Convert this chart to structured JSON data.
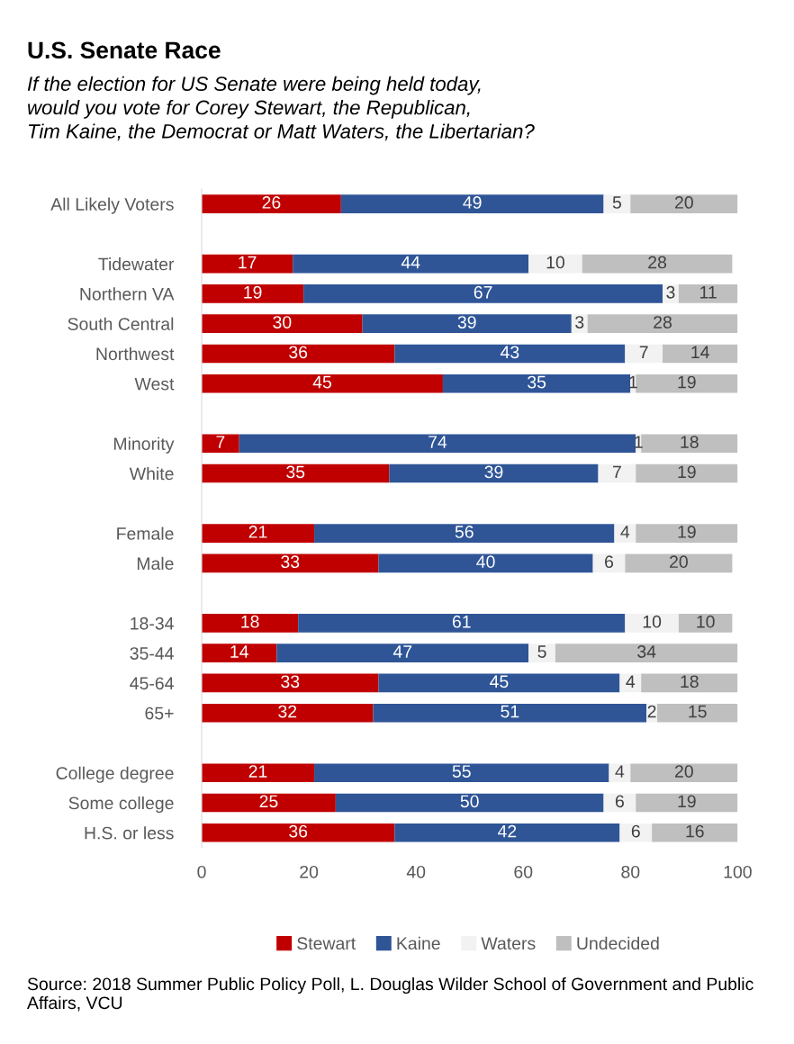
{
  "chart_data": {
    "type": "bar",
    "orientation": "horizontal",
    "stacked": true,
    "title": "U.S. Senate Race",
    "subtitle": "If the election for US Senate were being held today,\nwould you vote for Corey Stewart, the Republican,\nTim Kaine, the Democrat or Matt Waters, the Libertarian?",
    "categories": [
      "All Likely Voters",
      null,
      "Tidewater",
      "Northern VA",
      "South Central",
      "Northwest",
      "West",
      null,
      "Minority",
      "White",
      null,
      "Female",
      "Male",
      null,
      "18-34",
      "35-44",
      "45-64",
      "65+",
      null,
      "College degree",
      "Some college",
      "H.S. or less"
    ],
    "series": [
      {
        "name": "Stewart",
        "color": "#c00000",
        "values": [
          26,
          null,
          17,
          19,
          30,
          36,
          45,
          null,
          7,
          35,
          null,
          21,
          33,
          null,
          18,
          14,
          33,
          32,
          null,
          21,
          25,
          36
        ]
      },
      {
        "name": "Kaine",
        "color": "#2f5597",
        "values": [
          49,
          null,
          44,
          67,
          39,
          43,
          35,
          null,
          74,
          39,
          null,
          56,
          40,
          null,
          61,
          47,
          45,
          51,
          null,
          55,
          50,
          42
        ]
      },
      {
        "name": "Waters",
        "color": "#f2f2f2",
        "values": [
          5,
          null,
          10,
          3,
          3,
          7,
          1,
          null,
          1,
          7,
          null,
          4,
          6,
          null,
          10,
          5,
          4,
          2,
          null,
          4,
          6,
          6
        ]
      },
      {
        "name": "Undecided",
        "color": "#bfbfbf",
        "values": [
          20,
          null,
          28,
          11,
          28,
          14,
          19,
          null,
          18,
          19,
          null,
          19,
          20,
          null,
          10,
          34,
          18,
          15,
          null,
          20,
          19,
          16
        ]
      }
    ],
    "xlim": [
      0,
      100
    ],
    "xticks": [
      0,
      20,
      40,
      60,
      80,
      100
    ],
    "data_labels": true,
    "grid": false,
    "legend": "bottom",
    "annotations": [
      "Source: 2018 Summer Public Policy Poll, L. Douglas Wilder School of Government and Public Affairs, VCU"
    ]
  }
}
